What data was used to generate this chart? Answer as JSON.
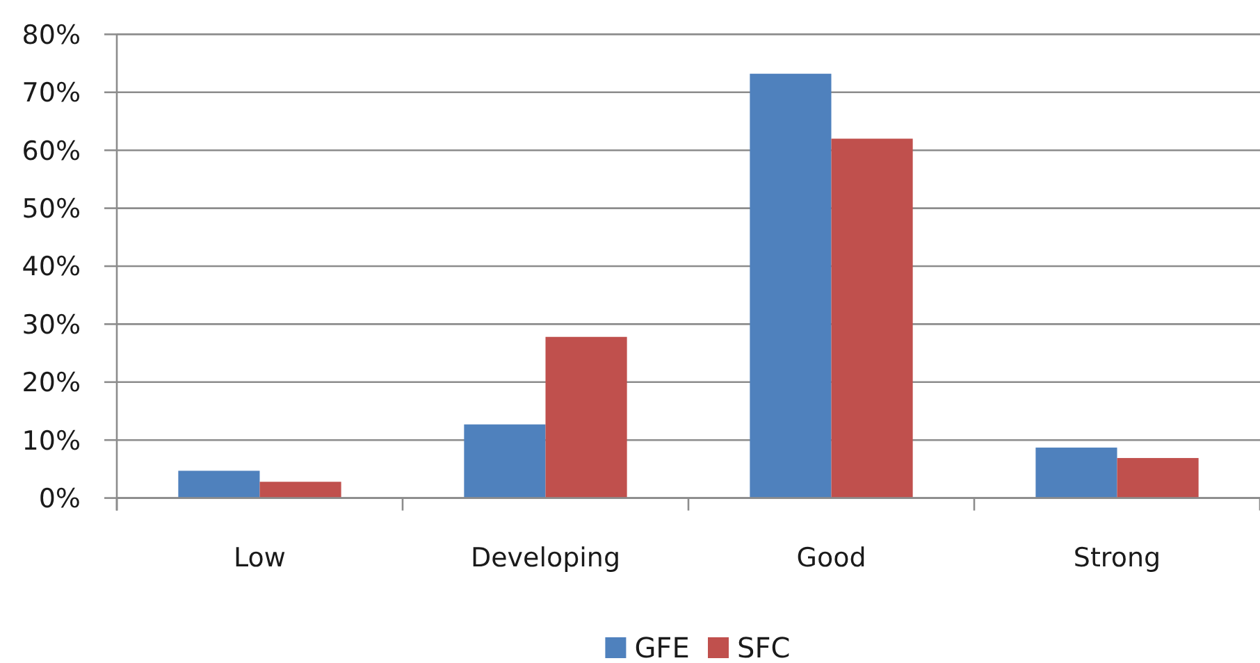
{
  "chart_data": {
    "type": "bar",
    "categories": [
      "Low",
      "Developing",
      "Good",
      "Strong"
    ],
    "series": [
      {
        "name": "GFE",
        "color": "#4f81bd",
        "values": [
          4.7,
          12.7,
          73.2,
          8.7
        ]
      },
      {
        "name": "SFC",
        "color": "#c0504d",
        "values": [
          2.8,
          27.8,
          62,
          6.9
        ]
      }
    ],
    "ylim": [
      0,
      80
    ],
    "yticks": [
      {
        "value": 0,
        "label": "0%"
      },
      {
        "value": 10,
        "label": "10%"
      },
      {
        "value": 20,
        "label": "20%"
      },
      {
        "value": 30,
        "label": "30%"
      },
      {
        "value": 40,
        "label": "40%"
      },
      {
        "value": 50,
        "label": "50%"
      },
      {
        "value": 60,
        "label": "60%"
      },
      {
        "value": 70,
        "label": "70%"
      },
      {
        "value": 80,
        "label": "80%"
      }
    ],
    "grid": "y",
    "legend": "bottom"
  }
}
